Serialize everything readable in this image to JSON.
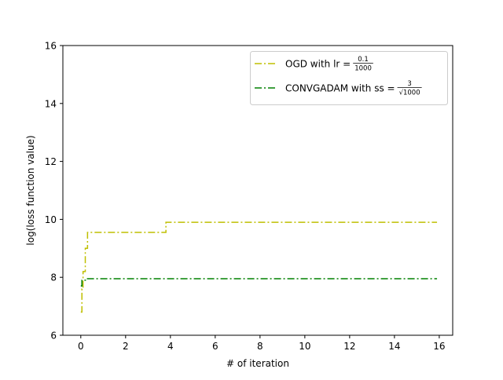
{
  "chart_data": {
    "type": "line",
    "title": "",
    "xlabel": "# of iteration",
    "ylabel": "log(loss function value)",
    "xlim": [
      -0.8,
      16.6
    ],
    "ylim": [
      6,
      16
    ],
    "xticks": [
      "0",
      "2",
      "4",
      "6",
      "8",
      "10",
      "12",
      "14",
      "16"
    ],
    "yticks": [
      "6",
      "8",
      "10",
      "12",
      "14",
      "16"
    ],
    "grid": false,
    "legend_position": "upper right",
    "series": [
      {
        "name": "OGD with lr = 0.1/1000",
        "legend_prefix": "OGD with lr = ",
        "legend_frac_num": "0.1",
        "legend_frac_den": "1000",
        "color": "#bfbf00",
        "linestyle": "dash-dot",
        "drawstyle": "steps-post",
        "x": [
          0.0,
          0.05,
          0.1,
          0.2,
          0.3,
          3.8,
          15.9
        ],
        "y": [
          6.8,
          7.6,
          8.2,
          9.0,
          9.55,
          9.9,
          9.9
        ]
      },
      {
        "name": "CONVGADAM with ss = 3/√1000",
        "legend_prefix": "CONVGADAM with ss = ",
        "legend_frac_num": "3",
        "legend_frac_den": "√1000",
        "color": "#008000",
        "linestyle": "dash-dot",
        "drawstyle": "steps-post",
        "x": [
          0.0,
          0.05,
          0.25,
          15.9
        ],
        "y": [
          7.7,
          7.9,
          7.95,
          7.95
        ]
      }
    ]
  }
}
